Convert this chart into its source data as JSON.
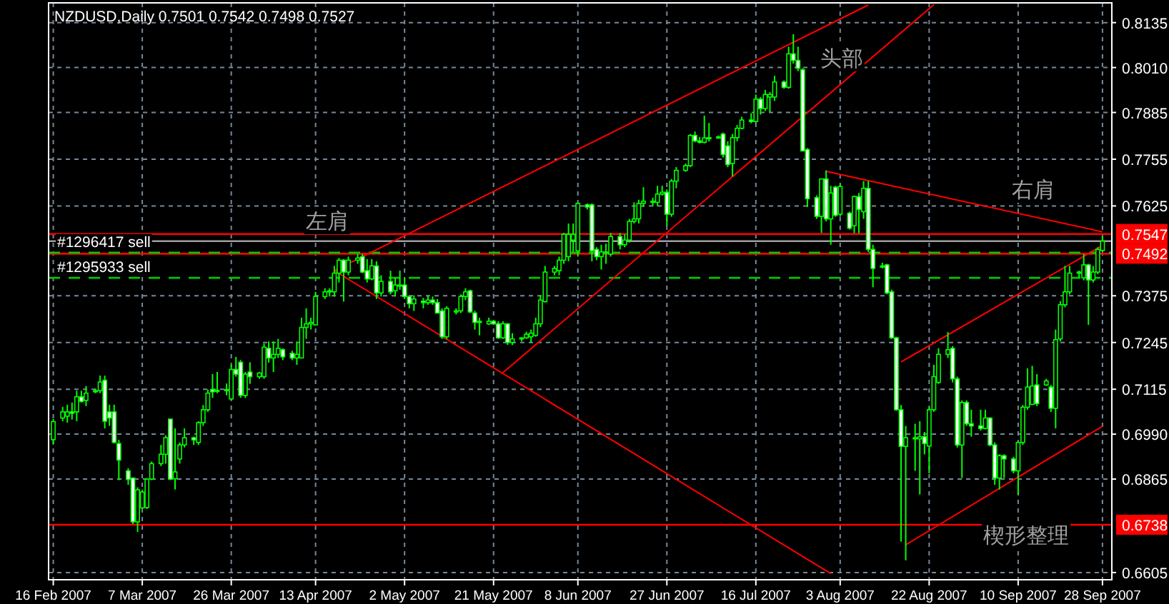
{
  "chart_data": {
    "type": "candlestick",
    "title": "NZDUSD,Daily  0.7501 0.7542 0.7498 0.7527",
    "color": "#00ff00",
    "grid": true,
    "xlim": [
      "2007-02-15",
      "2007-09-30"
    ],
    "ylim": [
      0.6585,
      0.819
    ],
    "xticks": [
      {
        "value": "2007-02-16",
        "label": "16 Feb 2007"
      },
      {
        "value": "2007-03-07",
        "label": "7 Mar 2007"
      },
      {
        "value": "2007-03-26",
        "label": "26 Mar 2007"
      },
      {
        "value": "2007-04-13",
        "label": "13 Apr 2007"
      },
      {
        "value": "2007-05-02",
        "label": "2 May 2007"
      },
      {
        "value": "2007-05-21",
        "label": "21 May 2007"
      },
      {
        "value": "2007-06-08",
        "label": "8 Jun 2007"
      },
      {
        "value": "2007-06-27",
        "label": "27 Jun 2007"
      },
      {
        "value": "2007-07-16",
        "label": "16 Jul 2007"
      },
      {
        "value": "2007-08-03",
        "label": "3 Aug 2007"
      },
      {
        "value": "2007-08-22",
        "label": "22 Aug 2007"
      },
      {
        "value": "2007-09-10",
        "label": "10 Sep 2007"
      },
      {
        "value": "2007-09-28",
        "label": "28 Sep 2007"
      }
    ],
    "yticks": [
      0.8135,
      {
        "value": 0.801,
        "label": "0.8010"
      },
      0.7885,
      0.7755,
      0.7625,
      0.7375,
      0.7245,
      0.7115,
      {
        "value": 0.699,
        "label": "0.6990"
      },
      0.6865,
      0.6605
    ],
    "x": [
      "2007-02-16",
      "2007-02-18",
      "2007-02-19",
      "2007-02-20",
      "2007-02-21",
      "2007-02-22",
      "2007-02-23",
      "2007-02-25",
      "2007-02-26",
      "2007-02-27",
      "2007-02-28",
      "2007-03-01",
      "2007-03-02",
      "2007-03-04",
      "2007-03-05",
      "2007-03-06",
      "2007-03-07",
      "2007-03-08",
      "2007-03-09",
      "2007-03-11",
      "2007-03-12",
      "2007-03-13",
      "2007-03-14",
      "2007-03-15",
      "2007-03-16",
      "2007-03-18",
      "2007-03-19",
      "2007-03-20",
      "2007-03-21",
      "2007-03-22",
      "2007-03-23",
      "2007-03-25",
      "2007-03-26",
      "2007-03-27",
      "2007-03-28",
      "2007-03-29",
      "2007-03-30",
      "2007-04-01",
      "2007-04-02",
      "2007-04-03",
      "2007-04-04",
      "2007-04-05",
      "2007-04-06",
      "2007-04-08",
      "2007-04-09",
      "2007-04-10",
      "2007-04-11",
      "2007-04-12",
      "2007-04-13",
      "2007-04-15",
      "2007-04-16",
      "2007-04-17",
      "2007-04-18",
      "2007-04-19",
      "2007-04-20",
      "2007-04-22",
      "2007-04-23",
      "2007-04-24",
      "2007-04-25",
      "2007-04-26",
      "2007-04-27",
      "2007-04-29",
      "2007-04-30",
      "2007-05-01",
      "2007-05-02",
      "2007-05-03",
      "2007-05-04",
      "2007-05-06",
      "2007-05-07",
      "2007-05-08",
      "2007-05-09",
      "2007-05-10",
      "2007-05-11",
      "2007-05-13",
      "2007-05-14",
      "2007-05-15",
      "2007-05-16",
      "2007-05-17",
      "2007-05-18",
      "2007-05-20",
      "2007-05-21",
      "2007-05-22",
      "2007-05-23",
      "2007-05-24",
      "2007-05-25",
      "2007-05-27",
      "2007-05-28",
      "2007-05-29",
      "2007-05-30",
      "2007-05-31",
      "2007-06-01",
      "2007-06-03",
      "2007-06-04",
      "2007-06-05",
      "2007-06-06",
      "2007-06-07",
      "2007-06-08",
      "2007-06-10",
      "2007-06-11",
      "2007-06-12",
      "2007-06-13",
      "2007-06-14",
      "2007-06-15",
      "2007-06-17",
      "2007-06-18",
      "2007-06-19",
      "2007-06-20",
      "2007-06-21",
      "2007-06-22",
      "2007-06-24",
      "2007-06-25",
      "2007-06-26",
      "2007-06-27",
      "2007-06-28",
      "2007-06-29",
      "2007-07-01",
      "2007-07-02",
      "2007-07-03",
      "2007-07-04",
      "2007-07-05",
      "2007-07-06",
      "2007-07-08",
      "2007-07-09",
      "2007-07-10",
      "2007-07-11",
      "2007-07-12",
      "2007-07-13",
      "2007-07-15",
      "2007-07-16",
      "2007-07-17",
      "2007-07-18",
      "2007-07-19",
      "2007-07-20",
      "2007-07-22",
      "2007-07-23",
      "2007-07-24",
      "2007-07-25",
      "2007-07-26",
      "2007-07-27",
      "2007-07-29",
      "2007-07-30",
      "2007-07-31",
      "2007-08-01",
      "2007-08-02",
      "2007-08-03",
      "2007-08-05",
      "2007-08-06",
      "2007-08-07",
      "2007-08-08",
      "2007-08-09",
      "2007-08-10",
      "2007-08-12",
      "2007-08-13",
      "2007-08-14",
      "2007-08-15",
      "2007-08-16",
      "2007-08-17",
      "2007-08-19",
      "2007-08-20",
      "2007-08-21",
      "2007-08-22",
      "2007-08-23",
      "2007-08-24",
      "2007-08-26",
      "2007-08-27",
      "2007-08-28",
      "2007-08-29",
      "2007-08-30",
      "2007-08-31",
      "2007-09-02",
      "2007-09-03",
      "2007-09-04",
      "2007-09-05",
      "2007-09-06",
      "2007-09-07",
      "2007-09-09",
      "2007-09-10",
      "2007-09-11",
      "2007-09-12",
      "2007-09-13",
      "2007-09-14",
      "2007-09-16",
      "2007-09-17",
      "2007-09-18",
      "2007-09-19",
      "2007-09-20",
      "2007-09-21",
      "2007-09-23",
      "2007-09-24",
      "2007-09-25",
      "2007-09-26",
      "2007-09-27",
      "2007-09-28"
    ],
    "ohlc": [
      [
        0.6975,
        0.7032,
        0.6961,
        0.7025
      ],
      [
        0.7035,
        0.7066,
        0.7026,
        0.7052
      ],
      [
        0.704,
        0.7072,
        0.7022,
        0.7052
      ],
      [
        0.7052,
        0.7078,
        0.7031,
        0.7048
      ],
      [
        0.7052,
        0.7111,
        0.7026,
        0.7094
      ],
      [
        0.7094,
        0.7111,
        0.7078,
        0.7081
      ],
      [
        0.7084,
        0.7124,
        0.7068,
        0.7104
      ],
      [
        0.7108,
        0.7117,
        0.7104,
        0.7111
      ],
      [
        0.7111,
        0.7153,
        0.7104,
        0.7135
      ],
      [
        0.714,
        0.7153,
        0.7006,
        0.7026
      ],
      [
        0.7052,
        0.7072,
        0.7013,
        0.7035
      ],
      [
        0.7052,
        0.7072,
        0.6964,
        0.6967
      ],
      [
        0.6964,
        0.6974,
        0.6862,
        0.6918
      ],
      [
        0.6888,
        0.6895,
        0.6849,
        0.6864
      ],
      [
        0.6868,
        0.6868,
        0.674,
        0.6746
      ],
      [
        0.6746,
        0.6842,
        0.6718,
        0.6835
      ],
      [
        0.6785,
        0.6835,
        0.6782,
        0.6829
      ],
      [
        0.6786,
        0.6868,
        0.6782,
        0.6865
      ],
      [
        0.6865,
        0.6914,
        0.6862,
        0.6908
      ],
      [
        0.6908,
        0.696,
        0.6901,
        0.6934
      ],
      [
        0.6934,
        0.6987,
        0.6908,
        0.698
      ],
      [
        0.7032,
        0.7032,
        0.6862,
        0.6865
      ],
      [
        0.6866,
        0.7006,
        0.6836,
        0.6885
      ],
      [
        0.6921,
        0.6967,
        0.6908,
        0.696
      ],
      [
        0.696,
        0.7006,
        0.6953,
        0.698
      ],
      [
        0.698,
        0.6983,
        0.696,
        0.6974
      ],
      [
        0.6967,
        0.7026,
        0.696,
        0.7022
      ],
      [
        0.7022,
        0.7071,
        0.7013,
        0.7058
      ],
      [
        0.7058,
        0.7114,
        0.7052,
        0.7104
      ],
      [
        0.7114,
        0.7157,
        0.7091,
        0.7108
      ],
      [
        0.7111,
        0.7163,
        0.7104,
        0.7112
      ],
      [
        0.7112,
        0.7131,
        0.7098,
        0.7114
      ],
      [
        0.7088,
        0.7183,
        0.7085,
        0.717
      ],
      [
        0.717,
        0.7205,
        0.715,
        0.7157
      ],
      [
        0.719,
        0.7196,
        0.7091,
        0.7098
      ],
      [
        0.7098,
        0.7163,
        0.7091,
        0.7157
      ],
      [
        0.7163,
        0.719,
        0.713,
        0.715
      ],
      [
        0.715,
        0.7163,
        0.7144,
        0.716
      ],
      [
        0.715,
        0.7242,
        0.7144,
        0.7232
      ],
      [
        0.7229,
        0.7248,
        0.7189,
        0.7202
      ],
      [
        0.7202,
        0.7248,
        0.7163,
        0.7212
      ],
      [
        0.7212,
        0.7255,
        0.7202,
        0.7229
      ],
      [
        0.7225,
        0.7229,
        0.7196,
        0.7205
      ],
      [
        0.7215,
        0.7222,
        0.7196,
        0.7202
      ],
      [
        0.7202,
        0.7248,
        0.7183,
        0.7212
      ],
      [
        0.7202,
        0.7314,
        0.7202,
        0.7287
      ],
      [
        0.7287,
        0.734,
        0.7255,
        0.7297
      ],
      [
        0.7297,
        0.7314,
        0.7281,
        0.7301
      ],
      [
        0.7294,
        0.7386,
        0.7294,
        0.7373
      ],
      [
        0.7373,
        0.7396,
        0.7366,
        0.7386
      ],
      [
        0.7386,
        0.7396,
        0.7373,
        0.7389
      ],
      [
        0.7386,
        0.7458,
        0.7373,
        0.7438
      ],
      [
        0.7438,
        0.748,
        0.7412,
        0.7474
      ],
      [
        0.7474,
        0.7477,
        0.7359,
        0.7441
      ],
      [
        0.7441,
        0.7484,
        0.7432,
        0.7474
      ],
      [
        0.7474,
        0.7491,
        0.7464,
        0.748
      ],
      [
        0.7484,
        0.7491,
        0.7438,
        0.7441
      ],
      [
        0.7445,
        0.7477,
        0.7412,
        0.7422
      ],
      [
        0.7422,
        0.7477,
        0.7418,
        0.7458
      ],
      [
        0.7458,
        0.7471,
        0.7366,
        0.7383
      ],
      [
        0.7383,
        0.7432,
        0.7373,
        0.7415
      ],
      [
        0.7415,
        0.7445,
        0.7379,
        0.7386
      ],
      [
        0.7389,
        0.7425,
        0.7373,
        0.7405
      ],
      [
        0.7405,
        0.7445,
        0.7392,
        0.7402
      ],
      [
        0.7405,
        0.7425,
        0.7366,
        0.7373
      ],
      [
        0.7373,
        0.7376,
        0.734,
        0.7353
      ],
      [
        0.7353,
        0.7376,
        0.7333,
        0.7366
      ],
      [
        0.736,
        0.7369,
        0.734,
        0.7356
      ],
      [
        0.7356,
        0.7376,
        0.735,
        0.7363
      ],
      [
        0.7363,
        0.7373,
        0.735,
        0.7356
      ],
      [
        0.7356,
        0.7366,
        0.7327,
        0.7327
      ],
      [
        0.7333,
        0.734,
        0.7255,
        0.7261
      ],
      [
        0.7261,
        0.7346,
        0.7255,
        0.734
      ],
      [
        0.7333,
        0.734,
        0.7323,
        0.7333
      ],
      [
        0.7333,
        0.7379,
        0.7327,
        0.7373
      ],
      [
        0.7373,
        0.7396,
        0.7363,
        0.7386
      ],
      [
        0.7389,
        0.7392,
        0.7327,
        0.733
      ],
      [
        0.7327,
        0.7333,
        0.7281,
        0.7301
      ],
      [
        0.7301,
        0.7314,
        0.7265,
        0.7304
      ],
      [
        0.7297,
        0.7314,
        0.7294,
        0.7304
      ],
      [
        0.7304,
        0.7307,
        0.7294,
        0.7297
      ],
      [
        0.7297,
        0.7304,
        0.7255,
        0.7258
      ],
      [
        0.7258,
        0.7304,
        0.7255,
        0.7297
      ],
      [
        0.7297,
        0.7297,
        0.7238,
        0.7245
      ],
      [
        0.7245,
        0.7271,
        0.7238,
        0.7255
      ],
      [
        0.7255,
        0.7258,
        0.7248,
        0.7258
      ],
      [
        0.7258,
        0.7275,
        0.7255,
        0.7268
      ],
      [
        0.7261,
        0.7281,
        0.7245,
        0.7271
      ],
      [
        0.7265,
        0.7314,
        0.7261,
        0.7297
      ],
      [
        0.7297,
        0.7376,
        0.7288,
        0.7363
      ],
      [
        0.7359,
        0.7458,
        0.7356,
        0.7441
      ],
      [
        0.7441,
        0.7458,
        0.7432,
        0.7451
      ],
      [
        0.7445,
        0.7484,
        0.7432,
        0.7474
      ],
      [
        0.7474,
        0.755,
        0.7464,
        0.7546
      ],
      [
        0.7484,
        0.7576,
        0.7471,
        0.7546
      ],
      [
        0.753,
        0.7576,
        0.7497,
        0.7546
      ],
      [
        0.75,
        0.7635,
        0.7484,
        0.7632
      ],
      [
        0.7628,
        0.7632,
        0.7615,
        0.7622
      ],
      [
        0.7628,
        0.7632,
        0.7471,
        0.75
      ],
      [
        0.7504,
        0.751,
        0.7474,
        0.7484
      ],
      [
        0.7484,
        0.7517,
        0.7448,
        0.7497
      ],
      [
        0.7494,
        0.752,
        0.7464,
        0.7497
      ],
      [
        0.7491,
        0.755,
        0.7484,
        0.754
      ],
      [
        0.754,
        0.755,
        0.7504,
        0.7517
      ],
      [
        0.7517,
        0.7546,
        0.751,
        0.753
      ],
      [
        0.753,
        0.7589,
        0.7523,
        0.7582
      ],
      [
        0.7582,
        0.7635,
        0.7576,
        0.7589
      ],
      [
        0.7589,
        0.7642,
        0.7576,
        0.7632
      ],
      [
        0.7632,
        0.7677,
        0.7622,
        0.7638
      ],
      [
        0.7638,
        0.7648,
        0.7625,
        0.7635
      ],
      [
        0.7635,
        0.7681,
        0.7625,
        0.7658
      ],
      [
        0.7658,
        0.7681,
        0.7654,
        0.7663
      ],
      [
        0.7663,
        0.7671,
        0.7569,
        0.7602
      ],
      [
        0.7602,
        0.77,
        0.7595,
        0.7694
      ],
      [
        0.7694,
        0.7733,
        0.7674,
        0.7724
      ],
      [
        0.7724,
        0.7743,
        0.772,
        0.7737
      ],
      [
        0.7737,
        0.7825,
        0.7733,
        0.7821
      ],
      [
        0.7821,
        0.7832,
        0.7802,
        0.7806
      ],
      [
        0.7806,
        0.7817,
        0.7799,
        0.7802
      ],
      [
        0.7802,
        0.7876,
        0.7799,
        0.7814
      ],
      [
        0.7814,
        0.7856,
        0.7804,
        0.7815
      ],
      [
        0.7815,
        0.7821,
        0.7812,
        0.7817
      ],
      [
        0.7825,
        0.7829,
        0.776,
        0.7768
      ],
      [
        0.7792,
        0.7805,
        0.7733,
        0.774
      ],
      [
        0.7743,
        0.7825,
        0.7707,
        0.7815
      ],
      [
        0.7815,
        0.785,
        0.7805,
        0.7841
      ],
      [
        0.7841,
        0.7873,
        0.7838,
        0.7864
      ],
      [
        0.7864,
        0.7883,
        0.7855,
        0.786
      ],
      [
        0.786,
        0.7935,
        0.7855,
        0.7922
      ],
      [
        0.7922,
        0.7928,
        0.7879,
        0.7896
      ],
      [
        0.7896,
        0.7948,
        0.7889,
        0.7935
      ],
      [
        0.7928,
        0.7942,
        0.7886,
        0.7935
      ],
      [
        0.7928,
        0.7987,
        0.7917,
        0.797
      ],
      [
        0.797,
        0.7974,
        0.7951,
        0.7955
      ],
      [
        0.7955,
        0.8068,
        0.7951,
        0.8048
      ],
      [
        0.8048,
        0.8103,
        0.8021,
        0.803
      ],
      [
        0.803,
        0.8068,
        0.8,
        0.8008
      ],
      [
        0.8004,
        0.8008,
        0.7778,
        0.7778
      ],
      [
        0.7782,
        0.7786,
        0.7622,
        0.7645
      ],
      [
        0.7648,
        0.7654,
        0.7589,
        0.7596
      ],
      [
        0.7596,
        0.77,
        0.755,
        0.77
      ],
      [
        0.77,
        0.7724,
        0.7582,
        0.7589
      ],
      [
        0.7589,
        0.7681,
        0.7517,
        0.7661
      ],
      [
        0.7677,
        0.7681,
        0.7595,
        0.7599
      ],
      [
        0.7602,
        0.7687,
        0.7595,
        0.7679
      ],
      [
        0.7605,
        0.7609,
        0.7559,
        0.7563
      ],
      [
        0.757,
        0.7654,
        0.7549,
        0.7651
      ],
      [
        0.7651,
        0.7661,
        0.7549,
        0.7615
      ],
      [
        0.7609,
        0.7694,
        0.7589,
        0.7674
      ],
      [
        0.7674,
        0.7694,
        0.7497,
        0.7504
      ],
      [
        0.7504,
        0.7517,
        0.7399,
        0.7451
      ],
      [
        0.7458,
        0.7467,
        0.7451,
        0.7458
      ],
      [
        0.7461,
        0.7464,
        0.7379,
        0.7383
      ],
      [
        0.7386,
        0.7392,
        0.7255,
        0.7258
      ],
      [
        0.7258,
        0.7261,
        0.7055,
        0.7058
      ],
      [
        0.7058,
        0.7071,
        0.6691,
        0.6956
      ],
      [
        0.6956,
        0.7013,
        0.6639,
        0.698
      ],
      [
        0.698,
        0.7019,
        0.6888,
        0.6977
      ],
      [
        0.6977,
        0.7026,
        0.6822,
        0.6983
      ],
      [
        0.6983,
        0.6996,
        0.6934,
        0.6964
      ],
      [
        0.6957,
        0.7065,
        0.6881,
        0.7058
      ],
      [
        0.7058,
        0.7183,
        0.7052,
        0.715
      ],
      [
        0.7134,
        0.7229,
        0.713,
        0.7212
      ],
      [
        0.7212,
        0.7274,
        0.7202,
        0.7225
      ],
      [
        0.7229,
        0.7235,
        0.7134,
        0.7144
      ],
      [
        0.7144,
        0.715,
        0.6953,
        0.696
      ],
      [
        0.696,
        0.7084,
        0.6868,
        0.7078
      ],
      [
        0.7078,
        0.7084,
        0.7013,
        0.7019
      ],
      [
        0.7019,
        0.7058,
        0.6983,
        0.7013
      ],
      [
        0.7013,
        0.7058,
        0.7,
        0.7006
      ],
      [
        0.7006,
        0.7058,
        0.7003,
        0.7035
      ],
      [
        0.7035,
        0.7035,
        0.6956,
        0.696
      ],
      [
        0.696,
        0.6967,
        0.6849,
        0.6868
      ],
      [
        0.6868,
        0.6934,
        0.6836,
        0.693
      ],
      [
        0.693,
        0.6934,
        0.6868,
        0.6921
      ],
      [
        0.6921,
        0.6927,
        0.6881,
        0.6888
      ],
      [
        0.6888,
        0.697,
        0.6822,
        0.6967
      ],
      [
        0.6967,
        0.7071,
        0.696,
        0.7065
      ],
      [
        0.7065,
        0.7173,
        0.7058,
        0.7121
      ],
      [
        0.7073,
        0.718,
        0.7071,
        0.7124
      ],
      [
        0.7127,
        0.7157,
        0.7068,
        0.7075
      ],
      [
        0.7127,
        0.7144,
        0.7124,
        0.7138
      ],
      [
        0.7121,
        0.7127,
        0.7052,
        0.7062
      ],
      [
        0.7062,
        0.7281,
        0.7006,
        0.7253
      ],
      [
        0.7255,
        0.736,
        0.7248,
        0.735
      ],
      [
        0.735,
        0.7458,
        0.7343,
        0.7386
      ],
      [
        0.7386,
        0.7458,
        0.7379,
        0.7438
      ],
      [
        0.7438,
        0.7445,
        0.7425,
        0.7441
      ],
      [
        0.7425,
        0.7491,
        0.7418,
        0.7461
      ],
      [
        0.7461,
        0.7464,
        0.7294,
        0.7419
      ],
      [
        0.7419,
        0.7458,
        0.7412,
        0.7441
      ],
      [
        0.7441,
        0.751,
        0.7435,
        0.7504
      ],
      [
        0.7501,
        0.7542,
        0.7498,
        0.7527
      ]
    ],
    "series": [
      {
        "type": "line",
        "color": "#ff0000",
        "x": [
          "2007-04-17",
          "2007-08-09"
        ],
        "values": [
          0.7445,
          0.8184
        ]
      },
      {
        "type": "line",
        "color": "#ff0000",
        "x": [
          "2007-04-17",
          "2007-08-01"
        ],
        "values": [
          0.7445,
          0.6602
        ]
      },
      {
        "type": "line",
        "color": "#ff0000",
        "x": [
          "2007-05-23",
          "2007-08-23"
        ],
        "values": [
          0.7161,
          0.8185
        ]
      },
      {
        "type": "line",
        "color": "#ff0000",
        "x": [
          "2007-07-31",
          "2007-09-28"
        ],
        "values": [
          0.7721,
          0.7553
        ]
      },
      {
        "type": "line",
        "color": "#ff0000",
        "x": [
          "2007-08-16",
          "2007-09-28"
        ],
        "values": [
          0.7191,
          0.7515
        ]
      },
      {
        "type": "line",
        "color": "#ff0000",
        "x": [
          "2007-08-17",
          "2007-09-28"
        ],
        "values": [
          0.6682,
          0.7012
        ]
      }
    ],
    "ref_lines": [
      {
        "axis": "y",
        "value": 0.7547,
        "label": "0.7547",
        "color": "#ff0000"
      },
      {
        "axis": "y",
        "value": 0.7492,
        "label": "0.7492",
        "color": "#ff0000"
      },
      {
        "axis": "y",
        "value": 0.6738,
        "label": "0.6738",
        "color": "#ff0000"
      },
      {
        "axis": "y",
        "value": 0.7527,
        "color": "#a0a0a0"
      },
      {
        "axis": "y",
        "value": 0.7495,
        "label": "#1296417 sell",
        "color": "#00c800",
        "line_style": "dashed"
      },
      {
        "axis": "y",
        "value": 0.7425,
        "label": "#1295933 sell",
        "color": "#00c800",
        "line_style": "dashed"
      }
    ],
    "annotations": [
      "左肩",
      "头部",
      "右肩",
      "楔形整理"
    ]
  }
}
